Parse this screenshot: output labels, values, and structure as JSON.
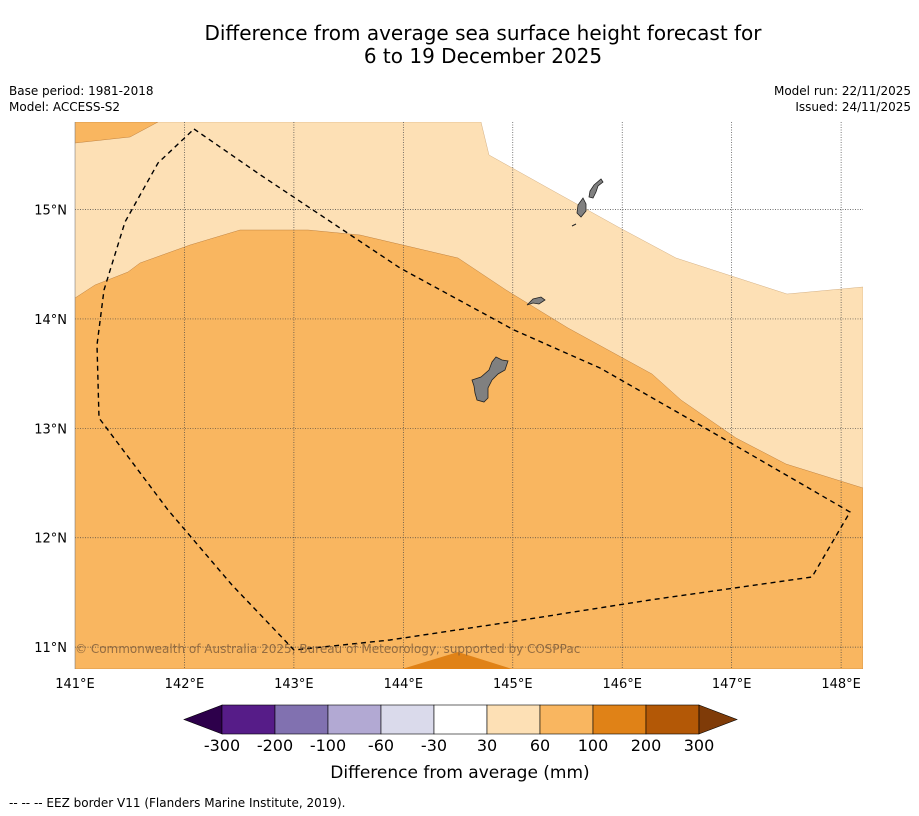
{
  "title": {
    "line1": "Difference from average sea surface height forecast for",
    "line2": "6 to 19 December 2025"
  },
  "meta_left": {
    "base_period": "Base period: 1981-2018",
    "model": "Model: ACCESS-S2"
  },
  "meta_right": {
    "model_run": "Model run: 22/11/2025",
    "issued": "Issued: 24/11/2025"
  },
  "map": {
    "lon_range": [
      141.0,
      148.2
    ],
    "lat_range": [
      10.8,
      15.8
    ],
    "lon_ticks": [
      "141°E",
      "142°E",
      "143°E",
      "144°E",
      "145°E",
      "146°E",
      "147°E",
      "148°E"
    ],
    "lat_ticks": [
      "11°N",
      "12°N",
      "13°N",
      "14°N",
      "15°N"
    ],
    "copyright": "© Commonwealth of Australia 2025, Bureau of Meteorology, supported by COSPPac",
    "colors": {
      "band_30_60": "#fde0b5",
      "band_60_100": "#f9b660",
      "band_100_200": "#e08217",
      "land": "#808080",
      "coast": "#222222"
    },
    "features": [
      "eez-border-dashed",
      "guam",
      "rota",
      "tinian",
      "saipan"
    ]
  },
  "colorbar": {
    "labels": [
      "-300",
      "-200",
      "-100",
      "-60",
      "-30",
      "30",
      "60",
      "100",
      "200",
      "300"
    ],
    "colors": [
      "#561c88",
      "#8171b0",
      "#b2a9d3",
      "#dadaeb",
      "#ffffff",
      "#fde0b5",
      "#f9b660",
      "#e08217",
      "#b35806"
    ],
    "extend_low_color": "#2d004b",
    "extend_high_color": "#7f3b08",
    "title": "Difference from average (mm)"
  },
  "footer": {
    "legend": "--  --  -- EEZ border V11 (Flanders Marine Institute, 2019)."
  }
}
